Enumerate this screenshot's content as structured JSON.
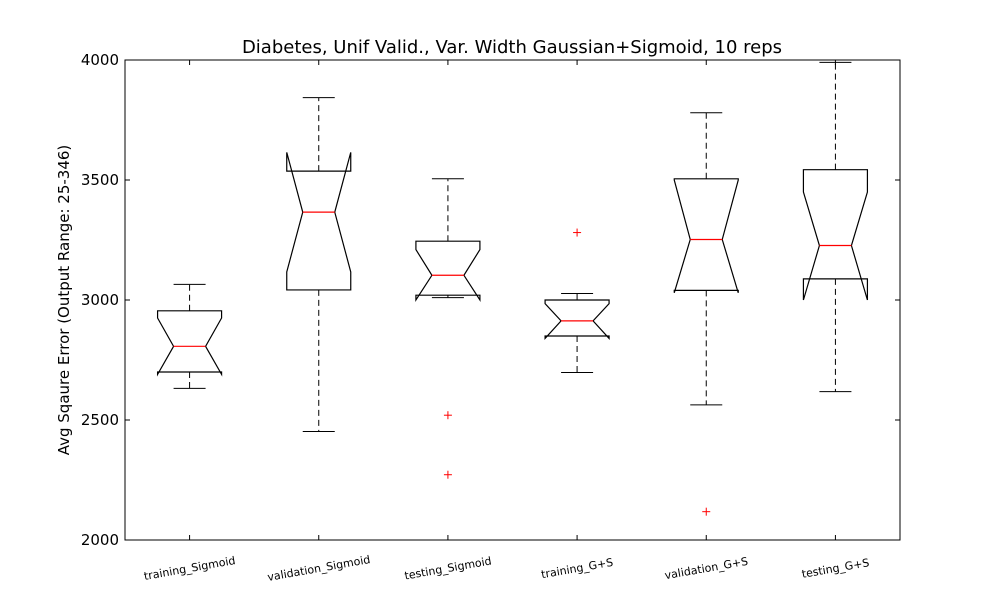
{
  "chart_data": {
    "type": "boxplot",
    "title": "Diabetes, Unif Valid., Var. Width Gaussian+Sigmoid, 10 reps",
    "xlabel": "",
    "ylabel": "Avg Sqaure Error (Output Range: 25-346)",
    "ylim": [
      2000,
      4000
    ],
    "yticks": [
      2000,
      2500,
      3000,
      3500,
      4000
    ],
    "notched": true,
    "grid": false,
    "colors": {
      "box": "#000000",
      "median": "#ff0000",
      "outlier": "#ff0000"
    },
    "categories": [
      "training_Sigmoid",
      "validation_Sigmoid",
      "testing_Sigmoid",
      "training_G+S",
      "validation_G+S",
      "testing_G+S"
    ],
    "boxes": [
      {
        "whislo": 2632,
        "q1": 2700,
        "med": 2807,
        "q3": 2955,
        "whishi": 3065,
        "notch_lo": 2690,
        "notch_hi": 2925,
        "fliers": []
      },
      {
        "whislo": 2452,
        "q1": 3042,
        "med": 3366,
        "q3": 3537,
        "whishi": 3843,
        "notch_lo": 3117,
        "notch_hi": 3615,
        "fliers": []
      },
      {
        "whislo": 3010,
        "q1": 3020,
        "med": 3103,
        "q3": 3245,
        "whishi": 3505,
        "notch_lo": 3000,
        "notch_hi": 3210,
        "fliers": [
          2520,
          2272
        ]
      },
      {
        "whislo": 2698,
        "q1": 2850,
        "med": 2913,
        "q3": 3000,
        "whishi": 3027,
        "notch_lo": 2840,
        "notch_hi": 2985,
        "fliers": [
          3281
        ]
      },
      {
        "whislo": 2563,
        "q1": 3040,
        "med": 3252,
        "q3": 3505,
        "whishi": 3780,
        "notch_lo": 3030,
        "notch_hi": 3500,
        "fliers": [
          2118
        ]
      },
      {
        "whislo": 2618,
        "q1": 3088,
        "med": 3227,
        "q3": 3543,
        "whishi": 3990,
        "notch_lo": 3000,
        "notch_hi": 3450,
        "fliers": []
      }
    ]
  }
}
